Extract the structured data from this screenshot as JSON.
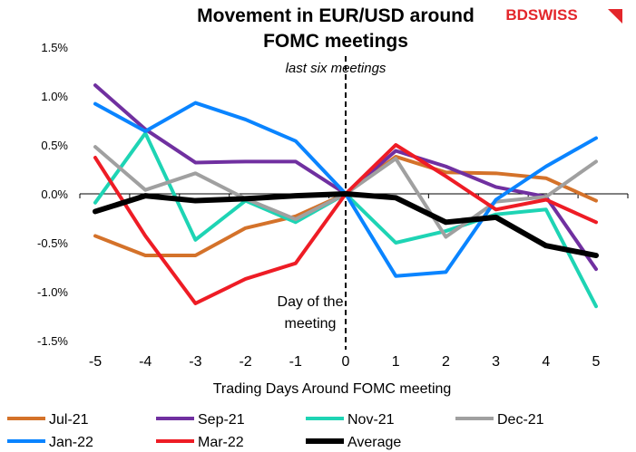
{
  "chart_data": {
    "type": "line",
    "title": "Movement in EUR/USD around FOMC meetings",
    "title_lines": [
      "Movement in EUR/USD around",
      "FOMC meetings"
    ],
    "subtitle": "last six meetings",
    "xlabel": "Trading Days Around FOMC meeting",
    "ylabel": "",
    "x": [
      -5,
      -4,
      -3,
      -2,
      -1,
      0,
      1,
      2,
      3,
      4,
      5
    ],
    "x_tick_labels": [
      "-5",
      "-4",
      "-3",
      "-2",
      "-1",
      "0",
      "1",
      "2",
      "3",
      "4",
      "5"
    ],
    "ylim": [
      -1.5,
      1.5
    ],
    "y_ticks": [
      1.5,
      1.0,
      0.5,
      0.0,
      -0.5,
      -1.0,
      -1.5
    ],
    "y_tick_labels": [
      "1.5%",
      "1.0%",
      "0.5%",
      "0.0%",
      "-0.5%",
      "-1.0%",
      "-1.5%"
    ],
    "y_unit": "%",
    "grid": false,
    "legend_position": "bottom",
    "annotation": {
      "lines": [
        "Day of the",
        "meeting"
      ],
      "x": 0
    },
    "series": [
      {
        "name": "Jul-21",
        "color": "#d4722a",
        "values": [
          -0.43,
          -0.63,
          -0.63,
          -0.35,
          -0.23,
          0,
          0.38,
          0.22,
          0.21,
          0.16,
          -0.07
        ]
      },
      {
        "name": "Sep-21",
        "color": "#7030a0",
        "values": [
          1.11,
          0.66,
          0.32,
          0.33,
          0.33,
          0,
          0.44,
          0.28,
          0.07,
          -0.03,
          -0.77
        ]
      },
      {
        "name": "Nov-21",
        "color": "#1ed4b4",
        "values": [
          -0.09,
          0.62,
          -0.47,
          -0.07,
          -0.29,
          0,
          -0.5,
          -0.38,
          -0.21,
          -0.16,
          -1.15
        ]
      },
      {
        "name": "Dec-21",
        "color": "#a0a0a0",
        "values": [
          0.48,
          0.04,
          0.21,
          -0.05,
          -0.26,
          0,
          0.36,
          -0.44,
          -0.08,
          -0.03,
          0.33
        ]
      },
      {
        "name": "Jan-22",
        "color": "#0a84ff",
        "values": [
          0.92,
          0.64,
          0.93,
          0.76,
          0.54,
          0,
          -0.84,
          -0.8,
          -0.06,
          0.28,
          0.57
        ]
      },
      {
        "name": "Mar-22",
        "color": "#ee1c25",
        "values": [
          0.37,
          -0.43,
          -1.12,
          -0.87,
          -0.71,
          0,
          0.5,
          0.18,
          -0.16,
          -0.06,
          -0.29
        ]
      },
      {
        "name": "Average",
        "color": "#000000",
        "values": [
          -0.18,
          -0.02,
          -0.07,
          -0.05,
          -0.02,
          0,
          -0.04,
          -0.29,
          -0.24,
          -0.53,
          -0.63
        ]
      }
    ]
  },
  "logo": {
    "text": "BDSWISS",
    "color": "#e3262b"
  }
}
